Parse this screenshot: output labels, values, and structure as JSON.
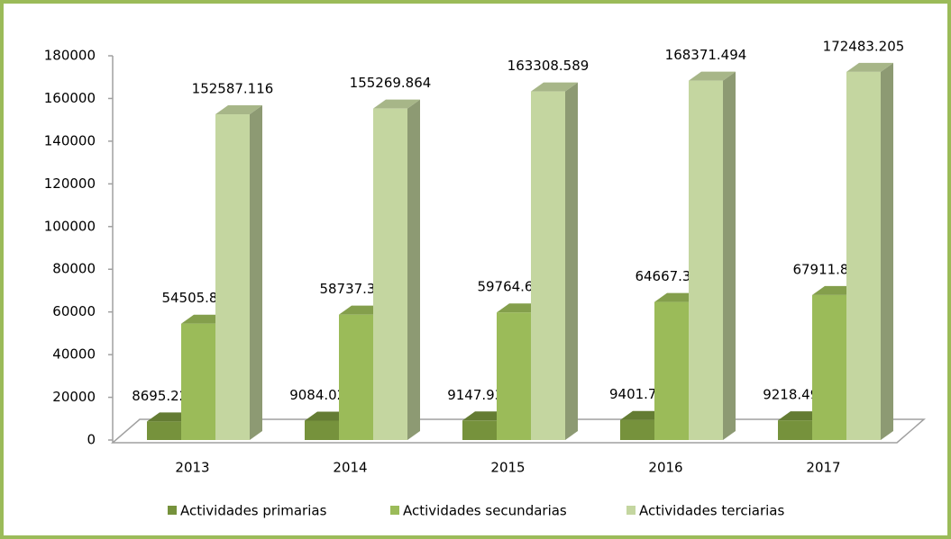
{
  "chart_data": {
    "type": "bar3d",
    "categories": [
      "2013",
      "2014",
      "2015",
      "2016",
      "2017"
    ],
    "series": [
      {
        "name": "Actividades primarias",
        "color": "#76923c",
        "values": [
          8695.222,
          9084.029,
          9147.931,
          9401.78,
          9218.496
        ]
      },
      {
        "name": "Actividades secundarias",
        "color": "#9bbb59",
        "values": [
          54505.899,
          58737.376,
          59764.637,
          64667.305,
          67911.872
        ]
      },
      {
        "name": "Actividades terciarias",
        "color": "#c4d6a0",
        "values": [
          152587.116,
          155269.864,
          163308.589,
          168371.494,
          172483.205
        ]
      }
    ],
    "ylim": [
      0,
      180000
    ],
    "yticks": [
      0,
      20000,
      40000,
      60000,
      80000,
      100000,
      120000,
      140000,
      160000,
      180000
    ],
    "grid": false,
    "legend": "bottom"
  }
}
